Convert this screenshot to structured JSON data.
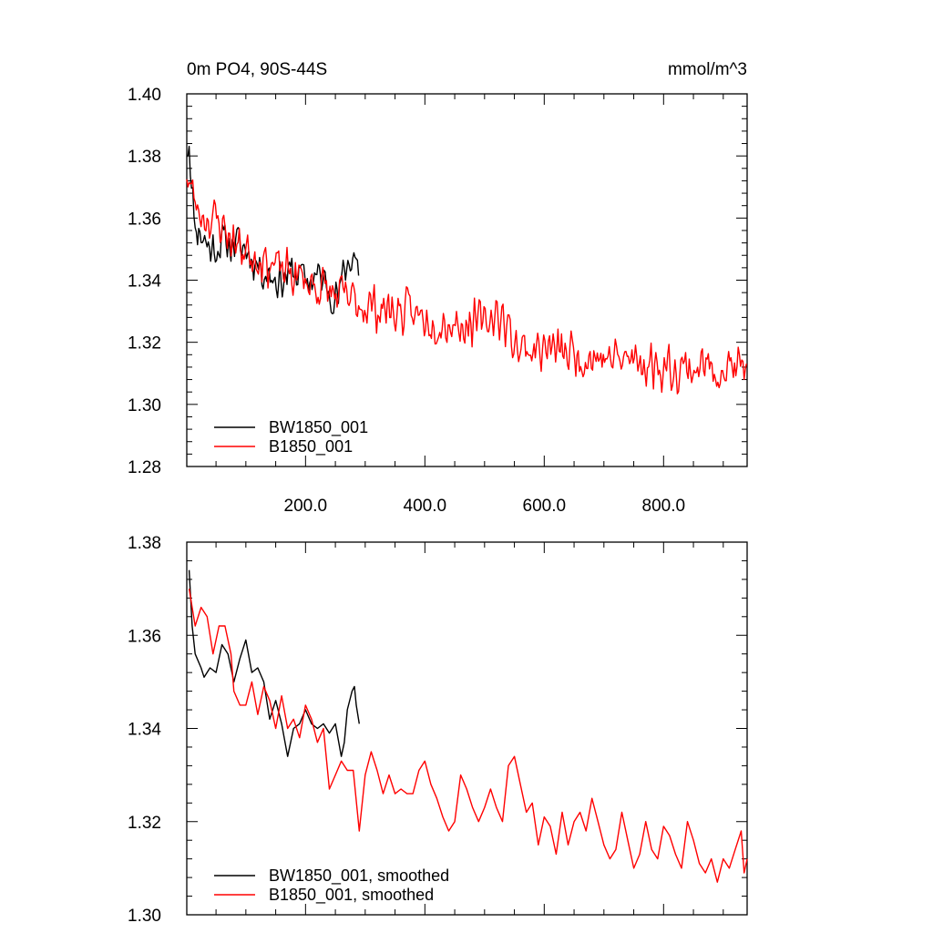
{
  "title_left": "0m PO4, 90S-44S",
  "title_right": "mmol/m^3",
  "colors": {
    "BW1850_001": "#000000",
    "B1850_001": "#ff0000"
  },
  "chart_data": [
    {
      "type": "line",
      "xlim": [
        1,
        940
      ],
      "ylim": [
        1.28,
        1.4
      ],
      "xticks": [
        200,
        400,
        600,
        800
      ],
      "xtick_labels": [
        "200.0",
        "400.0",
        "600.0",
        "800.0"
      ],
      "yticks": [
        1.28,
        1.3,
        1.32,
        1.34,
        1.36,
        1.38,
        1.4
      ],
      "ytick_labels": [
        "1.28",
        "1.30",
        "1.32",
        "1.34",
        "1.36",
        "1.38",
        "1.40"
      ],
      "legend": {
        "position": "bottom-left",
        "entries": [
          "BW1850_001",
          "B1850_001"
        ]
      },
      "series": [
        {
          "name": "BW1850_001",
          "color": "#000000",
          "x_start": 1,
          "x_end": 290,
          "anchors": [
            [
              1,
              1.382
            ],
            [
              5,
              1.386
            ],
            [
              10,
              1.367
            ],
            [
              15,
              1.358
            ],
            [
              25,
              1.355
            ],
            [
              40,
              1.35
            ],
            [
              60,
              1.352
            ],
            [
              80,
              1.352
            ],
            [
              100,
              1.35
            ],
            [
              120,
              1.345
            ],
            [
              140,
              1.342
            ],
            [
              160,
              1.34
            ],
            [
              180,
              1.343
            ],
            [
              200,
              1.34
            ],
            [
              220,
              1.341
            ],
            [
              240,
              1.338
            ],
            [
              255,
              1.334
            ],
            [
              265,
              1.343
            ],
            [
              275,
              1.347
            ],
            [
              282,
              1.349
            ],
            [
              290,
              1.342
            ]
          ],
          "noise": 0.008,
          "seed": 11
        },
        {
          "name": "B1850_001",
          "color": "#ff0000",
          "x_start": 1,
          "x_end": 940,
          "anchors": [
            [
              1,
              1.375
            ],
            [
              10,
              1.368
            ],
            [
              20,
              1.362
            ],
            [
              40,
              1.36
            ],
            [
              60,
              1.358
            ],
            [
              80,
              1.352
            ],
            [
              100,
              1.35
            ],
            [
              120,
              1.348
            ],
            [
              150,
              1.344
            ],
            [
              200,
              1.34
            ],
            [
              250,
              1.335
            ],
            [
              300,
              1.332
            ],
            [
              350,
              1.33
            ],
            [
              400,
              1.328
            ],
            [
              450,
              1.326
            ],
            [
              500,
              1.326
            ],
            [
              520,
              1.33
            ],
            [
              560,
              1.318
            ],
            [
              600,
              1.318
            ],
            [
              650,
              1.316
            ],
            [
              700,
              1.315
            ],
            [
              750,
              1.314
            ],
            [
              800,
              1.312
            ],
            [
              850,
              1.312
            ],
            [
              900,
              1.312
            ],
            [
              940,
              1.311
            ]
          ],
          "noise": 0.009,
          "seed": 23
        }
      ]
    },
    {
      "type": "line",
      "xlim": [
        1,
        940
      ],
      "ylim": [
        1.3,
        1.38
      ],
      "yticks": [
        1.3,
        1.32,
        1.34,
        1.36,
        1.38
      ],
      "ytick_labels": [
        "1.30",
        "1.32",
        "1.34",
        "1.36",
        "1.38"
      ],
      "legend": {
        "position": "bottom-left",
        "entries": [
          "BW1850_001, smoothed",
          "B1850_001, smoothed"
        ]
      },
      "series": [
        {
          "name": "BW1850_001, smoothed",
          "color": "#000000",
          "x_start": 5,
          "x_end": 290,
          "points": [
            [
              5,
              1.374
            ],
            [
              10,
              1.362
            ],
            [
              15,
              1.356
            ],
            [
              25,
              1.353
            ],
            [
              30,
              1.351
            ],
            [
              40,
              1.353
            ],
            [
              50,
              1.352
            ],
            [
              60,
              1.358
            ],
            [
              70,
              1.356
            ],
            [
              80,
              1.35
            ],
            [
              90,
              1.355
            ],
            [
              100,
              1.359
            ],
            [
              110,
              1.352
            ],
            [
              120,
              1.353
            ],
            [
              130,
              1.35
            ],
            [
              140,
              1.342
            ],
            [
              150,
              1.346
            ],
            [
              160,
              1.341
            ],
            [
              170,
              1.334
            ],
            [
              180,
              1.34
            ],
            [
              190,
              1.341
            ],
            [
              200,
              1.344
            ],
            [
              210,
              1.341
            ],
            [
              220,
              1.34
            ],
            [
              230,
              1.341
            ],
            [
              240,
              1.339
            ],
            [
              250,
              1.341
            ],
            [
              260,
              1.334
            ],
            [
              265,
              1.337
            ],
            [
              270,
              1.344
            ],
            [
              278,
              1.348
            ],
            [
              282,
              1.349
            ],
            [
              285,
              1.345
            ],
            [
              290,
              1.341
            ]
          ]
        },
        {
          "name": "B1850_001, smoothed",
          "color": "#ff0000",
          "x_start": 5,
          "x_end": 940,
          "points": [
            [
              5,
              1.37
            ],
            [
              15,
              1.362
            ],
            [
              25,
              1.366
            ],
            [
              35,
              1.364
            ],
            [
              45,
              1.356
            ],
            [
              55,
              1.362
            ],
            [
              65,
              1.362
            ],
            [
              75,
              1.356
            ],
            [
              80,
              1.348
            ],
            [
              90,
              1.345
            ],
            [
              100,
              1.345
            ],
            [
              110,
              1.35
            ],
            [
              120,
              1.343
            ],
            [
              130,
              1.349
            ],
            [
              140,
              1.346
            ],
            [
              150,
              1.34
            ],
            [
              160,
              1.347
            ],
            [
              170,
              1.34
            ],
            [
              180,
              1.342
            ],
            [
              190,
              1.338
            ],
            [
              200,
              1.345
            ],
            [
              210,
              1.342
            ],
            [
              220,
              1.337
            ],
            [
              230,
              1.34
            ],
            [
              240,
              1.327
            ],
            [
              250,
              1.33
            ],
            [
              260,
              1.333
            ],
            [
              270,
              1.331
            ],
            [
              280,
              1.331
            ],
            [
              290,
              1.318
            ],
            [
              300,
              1.33
            ],
            [
              310,
              1.335
            ],
            [
              320,
              1.331
            ],
            [
              330,
              1.326
            ],
            [
              340,
              1.33
            ],
            [
              350,
              1.326
            ],
            [
              360,
              1.327
            ],
            [
              370,
              1.326
            ],
            [
              380,
              1.326
            ],
            [
              390,
              1.331
            ],
            [
              400,
              1.333
            ],
            [
              410,
              1.328
            ],
            [
              420,
              1.325
            ],
            [
              430,
              1.321
            ],
            [
              440,
              1.318
            ],
            [
              450,
              1.32
            ],
            [
              460,
              1.33
            ],
            [
              470,
              1.327
            ],
            [
              480,
              1.323
            ],
            [
              490,
              1.32
            ],
            [
              500,
              1.323
            ],
            [
              510,
              1.327
            ],
            [
              520,
              1.323
            ],
            [
              530,
              1.32
            ],
            [
              540,
              1.332
            ],
            [
              550,
              1.334
            ],
            [
              560,
              1.328
            ],
            [
              570,
              1.322
            ],
            [
              580,
              1.324
            ],
            [
              590,
              1.315
            ],
            [
              600,
              1.321
            ],
            [
              610,
              1.319
            ],
            [
              620,
              1.313
            ],
            [
              630,
              1.322
            ],
            [
              640,
              1.315
            ],
            [
              650,
              1.32
            ],
            [
              660,
              1.322
            ],
            [
              670,
              1.318
            ],
            [
              680,
              1.325
            ],
            [
              690,
              1.32
            ],
            [
              700,
              1.315
            ],
            [
              710,
              1.312
            ],
            [
              720,
              1.314
            ],
            [
              730,
              1.322
            ],
            [
              740,
              1.316
            ],
            [
              750,
              1.31
            ],
            [
              760,
              1.313
            ],
            [
              770,
              1.32
            ],
            [
              780,
              1.314
            ],
            [
              790,
              1.312
            ],
            [
              800,
              1.319
            ],
            [
              810,
              1.317
            ],
            [
              820,
              1.313
            ],
            [
              830,
              1.31
            ],
            [
              840,
              1.32
            ],
            [
              850,
              1.316
            ],
            [
              860,
              1.311
            ],
            [
              870,
              1.309
            ],
            [
              880,
              1.312
            ],
            [
              890,
              1.307
            ],
            [
              900,
              1.312
            ],
            [
              910,
              1.31
            ],
            [
              920,
              1.314
            ],
            [
              930,
              1.318
            ],
            [
              935,
              1.309
            ],
            [
              940,
              1.312
            ]
          ]
        }
      ]
    }
  ]
}
